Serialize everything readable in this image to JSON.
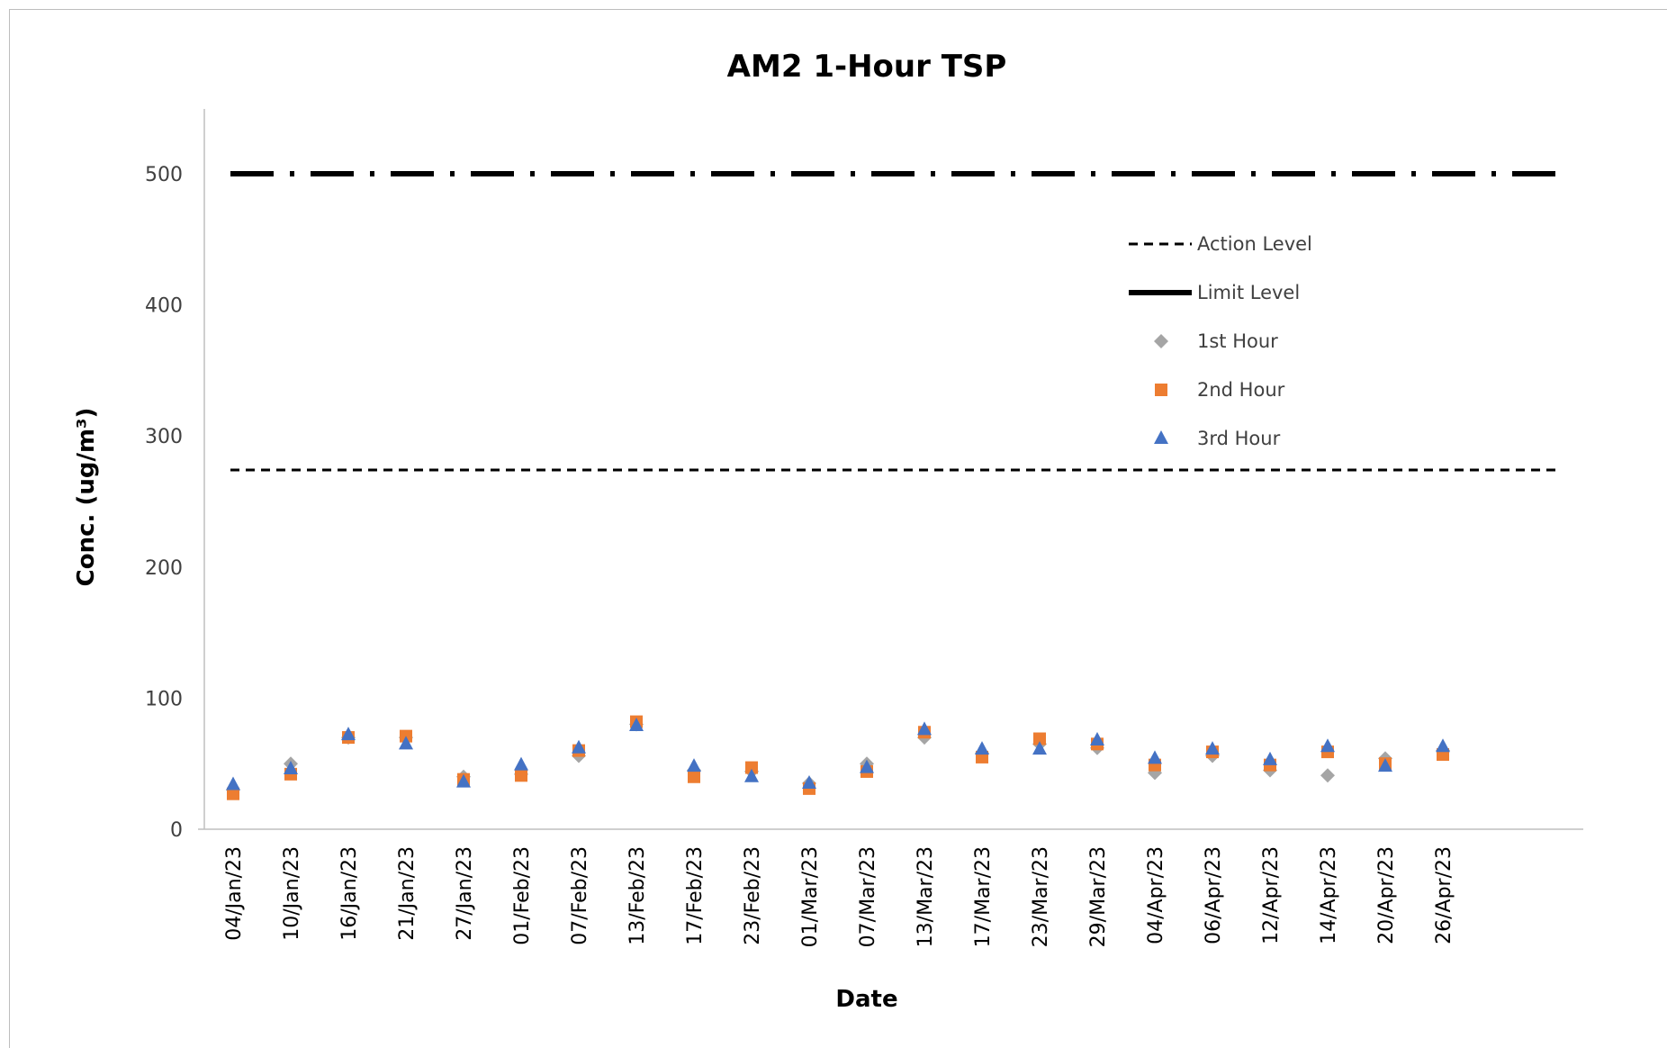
{
  "chart_data": {
    "type": "scatter",
    "title": "AM2 1-Hour TSP",
    "xlabel": "Date",
    "ylabel": "Conc. (ug/m³)",
    "ylim": [
      0,
      550
    ],
    "yticks": [
      0,
      100,
      200,
      300,
      400,
      500
    ],
    "grid": false,
    "legend_position": "top-right",
    "categories": [
      "04/Jan/23",
      "10/Jan/23",
      "16/Jan/23",
      "21/Jan/23",
      "27/Jan/23",
      "01/Feb/23",
      "07/Feb/23",
      "13/Feb/23",
      "17/Feb/23",
      "23/Feb/23",
      "01/Mar/23",
      "07/Mar/23",
      "13/Mar/23",
      "17/Mar/23",
      "23/Mar/23",
      "29/Mar/23",
      "04/Apr/23",
      "06/Apr/23",
      "12/Apr/23",
      "14/Apr/23",
      "20/Apr/23",
      "26/Apr/23"
    ],
    "reference_lines": [
      {
        "name": "Action Level",
        "value": 274,
        "style": "dashed",
        "color": "#000000"
      },
      {
        "name": "Limit Level",
        "value": 500,
        "style": "dash-dot",
        "color": "#000000"
      }
    ],
    "series": [
      {
        "name": "1st Hour",
        "marker": "diamond",
        "color": "#a5a5a5",
        "values": [
          30,
          50,
          70,
          70,
          40,
          42,
          56,
          80,
          45,
          44,
          35,
          50,
          70,
          58,
          65,
          62,
          43,
          56,
          45,
          41,
          54,
          60
        ]
      },
      {
        "name": "2nd Hour",
        "marker": "square",
        "color": "#ed7d31",
        "values": [
          27,
          42,
          70,
          71,
          38,
          41,
          60,
          82,
          40,
          47,
          31,
          44,
          74,
          55,
          69,
          65,
          49,
          59,
          49,
          59,
          50,
          57
        ]
      },
      {
        "name": "3rd Hour",
        "marker": "triangle",
        "color": "#4472c4",
        "values": [
          34,
          46,
          72,
          65,
          36,
          49,
          62,
          79,
          48,
          40,
          35,
          47,
          76,
          61,
          61,
          68,
          54,
          61,
          53,
          63,
          48,
          63
        ]
      }
    ]
  }
}
